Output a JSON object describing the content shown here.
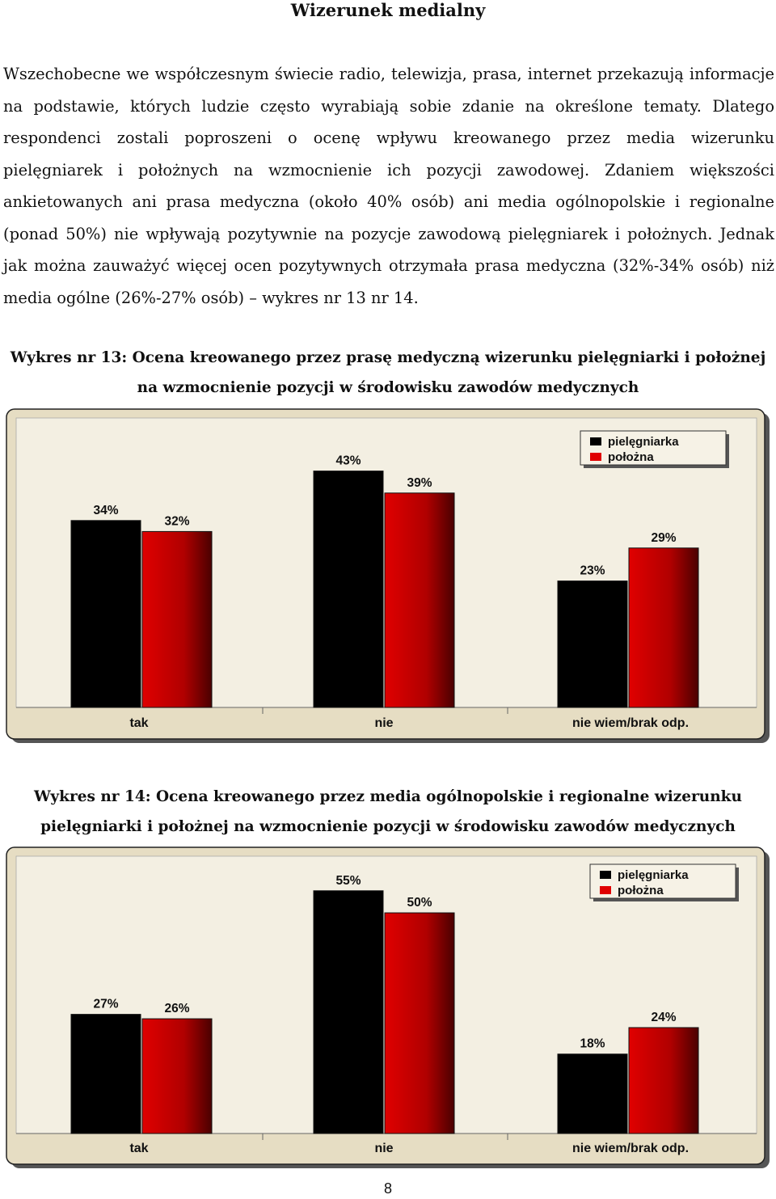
{
  "heading": "Wizerunek medialny",
  "paragraph": "Wszechobecne we współczesnym świecie radio, telewizja, prasa, internet przekazują informacje na podstawie, których ludzie często wyrabiają sobie zdanie na określone tematy. Dlatego respondenci zostali poproszeni o ocenę wpływu kreowanego przez media wizerunku pielęgniarek i położnych na wzmocnienie ich pozycji zawodowej. Zdaniem większości ankietowanych ani prasa medyczna (około 40% osób) ani media ogólnopolskie i regionalne (ponad 50%) nie wpływają pozytywnie na pozycje zawodową pielęgniarek i położnych. Jednak jak można zauważyć więcej ocen pozytywnych otrzymała prasa medyczna (32%-34% osób) niż media ogólne (26%-27% osób) – wykres nr 13 nr 14.",
  "colors": {
    "pielegniarka": "#000000",
    "polozna": "#e00000",
    "plot_bg": "#f3efe2",
    "frame": "#e6ddc3"
  },
  "chart_data": [
    {
      "type": "bar",
      "title": "Wykres nr 13: Ocena kreowanego przez prasę medyczną wizerunku pielęgniarki i położnej na wzmocnienie pozycji w środowisku zawodów medycznych",
      "categories": [
        "tak",
        "nie",
        "nie wiem/brak odp."
      ],
      "series": [
        {
          "name": "pielęgniarka",
          "values": [
            34,
            43,
            23
          ],
          "labels": [
            "34%",
            "43%",
            "23%"
          ]
        },
        {
          "name": "położna",
          "values": [
            32,
            39,
            29
          ],
          "labels": [
            "32%",
            "39%",
            "29%"
          ]
        }
      ],
      "ylim": [
        0,
        50
      ],
      "legend": "top-right",
      "grid": false
    },
    {
      "type": "bar",
      "title": "Wykres nr 14: Ocena kreowanego przez media ogólnopolskie i regionalne wizerunku pielęgniarki i położnej na wzmocnienie pozycji w środowisku zawodów medycznych",
      "categories": [
        "tak",
        "nie",
        "nie wiem/brak odp."
      ],
      "series": [
        {
          "name": "pielęgniarka",
          "values": [
            27,
            55,
            18
          ],
          "labels": [
            "27%",
            "55%",
            "18%"
          ]
        },
        {
          "name": "położna",
          "values": [
            26,
            50,
            24
          ],
          "labels": [
            "26%",
            "50%",
            "24%"
          ]
        }
      ],
      "ylim": [
        0,
        61
      ],
      "legend": "top-right",
      "grid": false
    }
  ],
  "page_number": "8"
}
